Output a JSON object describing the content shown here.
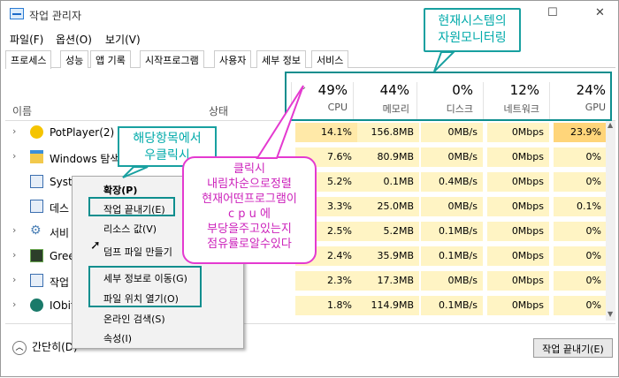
{
  "window": {
    "title": "작업 관리자"
  },
  "menu": [
    "파일(F)",
    "옵션(O)",
    "보기(V)"
  ],
  "tabs": [
    "프로세스",
    "성능",
    "앱 기록",
    "시작프로그램",
    "사용자",
    "세부 정보",
    "서비스"
  ],
  "header": {
    "name_label": "이름",
    "state_label": "상태",
    "columns": [
      {
        "pct": "49%",
        "label": "CPU"
      },
      {
        "pct": "44%",
        "label": "메모리"
      },
      {
        "pct": "0%",
        "label": "디스크"
      },
      {
        "pct": "12%",
        "label": "네트워크"
      },
      {
        "pct": "24%",
        "label": "GPU"
      }
    ]
  },
  "rows": [
    {
      "name": "PotPlayer(2)",
      "cpu": "14.1%",
      "mem": "156.8MB",
      "disk": "0MB/s",
      "net": "0Mbps",
      "gpu": "23.9%"
    },
    {
      "name": "Windows 탐색",
      "cpu": "7.6%",
      "mem": "80.9MB",
      "disk": "0MB/s",
      "net": "0Mbps",
      "gpu": "0%"
    },
    {
      "name": "Syste",
      "cpu": "5.2%",
      "mem": "0.1MB",
      "disk": "0.4MB/s",
      "net": "0Mbps",
      "gpu": "0%"
    },
    {
      "name": "데스",
      "cpu": "3.3%",
      "mem": "25.0MB",
      "disk": "0MB/s",
      "net": "0Mbps",
      "gpu": "0.1%"
    },
    {
      "name": "서비",
      "cpu": "2.5%",
      "mem": "5.2MB",
      "disk": "0.1MB/s",
      "net": "0Mbps",
      "gpu": "0%"
    },
    {
      "name": "Gree",
      "cpu": "2.4%",
      "mem": "35.9MB",
      "disk": "0.1MB/s",
      "net": "0Mbps",
      "gpu": "0%"
    },
    {
      "name": "작업",
      "cpu": "2.3%",
      "mem": "17.3MB",
      "disk": "0MB/s",
      "net": "0Mbps",
      "gpu": "0%"
    },
    {
      "name": "IObit",
      "cpu": "1.8%",
      "mem": "114.9MB",
      "disk": "0.1MB/s",
      "net": "0Mbps",
      "gpu": "0%"
    }
  ],
  "context_menu": [
    "확장(P)",
    "작업 끝내기(E)",
    "리소스 값(V)",
    "덤프 파일 만들기",
    "세부 정보로 이동(G)",
    "파일 위치 열기(O)",
    "온라인 검색(S)",
    "속성(I)"
  ],
  "footer": {
    "simple_label": "간단히(D)",
    "end_task": "작업 끝내기(E)"
  },
  "annotations": {
    "top": [
      "현재시스템의",
      "자원모니터링"
    ],
    "left": [
      "해당항목에서",
      "우클릭시"
    ],
    "pink": [
      "클릭시",
      "내림차순으로정렬",
      "현재어떤프로그램이",
      "c p u 에",
      "부당을주고있는지",
      "점유률로알수있다"
    ]
  }
}
